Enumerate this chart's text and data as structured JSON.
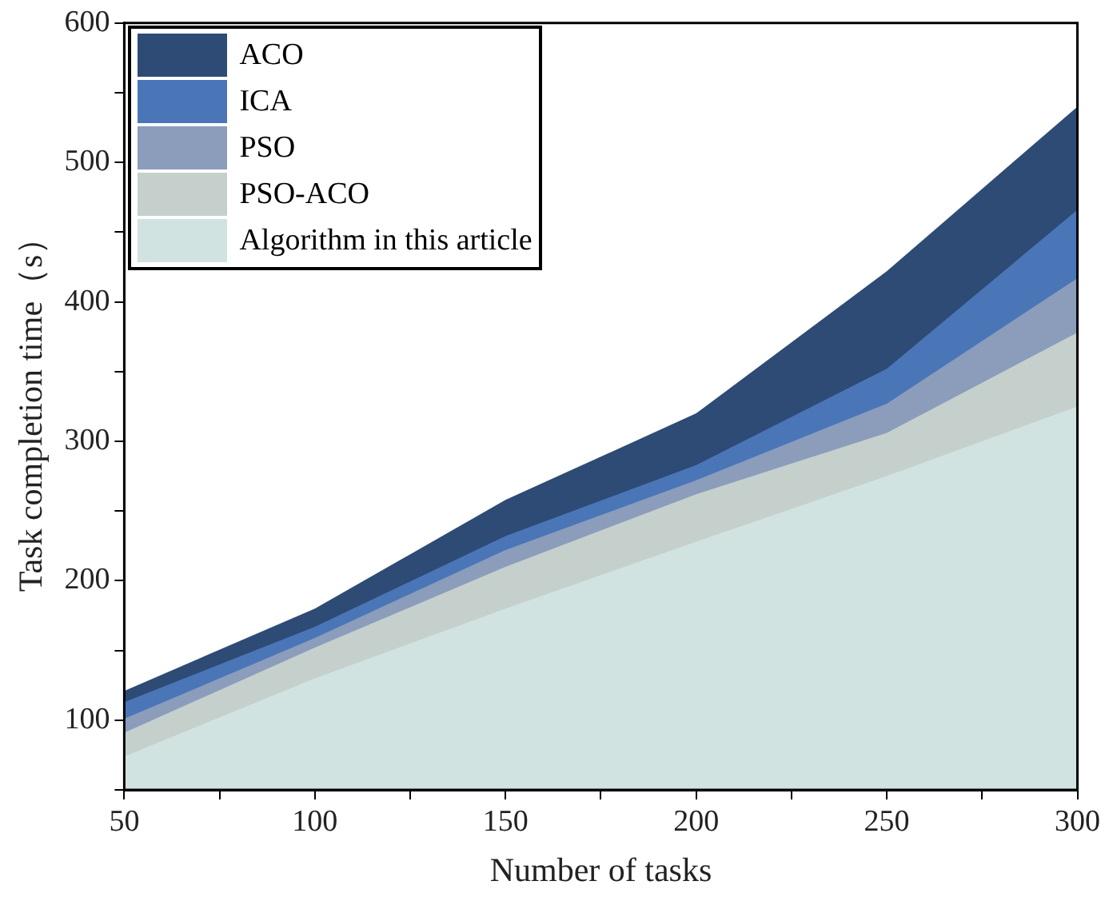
{
  "chart_data": {
    "type": "area",
    "xlabel": "Number of tasks",
    "ylabel": "Task completion time（s）",
    "x": [
      50,
      100,
      150,
      200,
      250,
      300
    ],
    "series": [
      {
        "name": "ACO",
        "color": "#2d4b75",
        "values": [
          121,
          180,
          258,
          320,
          422,
          540
        ]
      },
      {
        "name": "ICA",
        "color": "#4a76b8",
        "values": [
          113,
          167,
          232,
          283,
          352,
          466
        ]
      },
      {
        "name": "PSO",
        "color": "#8b9dbb",
        "values": [
          101,
          159,
          222,
          272,
          327,
          417
        ]
      },
      {
        "name": "PSO-ACO",
        "color": "#c5d0cd",
        "values": [
          91,
          152,
          210,
          262,
          306,
          378
        ]
      },
      {
        "name": "Algorithm in this article",
        "color": "#d0e3e0",
        "values": [
          74,
          130,
          180,
          228,
          275,
          325
        ]
      }
    ],
    "xlim": [
      50,
      300
    ],
    "xticks": [
      50,
      {
        "value": 75,
        "label": null
      },
      100,
      {
        "value": 125,
        "label": null
      },
      150,
      {
        "value": 175,
        "label": null
      },
      200,
      {
        "value": 225,
        "label": null
      },
      250,
      {
        "value": 275,
        "label": null
      },
      300
    ],
    "ylim": [
      50,
      600
    ],
    "yticks": [
      {
        "value": 50,
        "label": null
      },
      100,
      {
        "value": 150,
        "label": null
      },
      200,
      {
        "value": 250,
        "label": null
      },
      300,
      {
        "value": 350,
        "label": null
      },
      400,
      {
        "value": 450,
        "label": null
      },
      500,
      {
        "value": 550,
        "label": null
      },
      600
    ],
    "grid": false,
    "legend": "top left"
  }
}
